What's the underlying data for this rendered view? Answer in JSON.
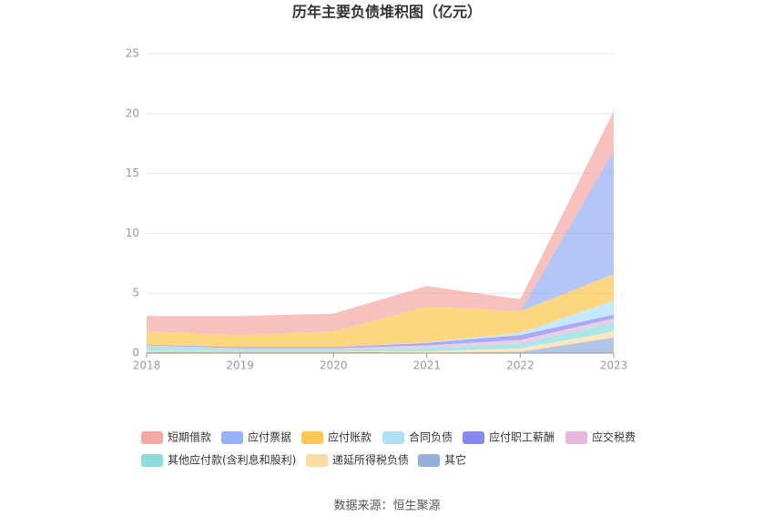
{
  "chart_data": {
    "type": "stacked-area",
    "title": "历年主要负债堆积图（亿元）",
    "categories": [
      "2018",
      "2019",
      "2020",
      "2021",
      "2022",
      "2023"
    ],
    "series": [
      {
        "name": "短期借款",
        "color": "#f4a09a",
        "values": [
          1.3,
          1.6,
          1.5,
          1.7,
          1.0,
          3.3
        ]
      },
      {
        "name": "应付票据",
        "color": "#8aa8f8",
        "values": [
          0,
          0,
          0,
          0,
          0,
          10.3
        ]
      },
      {
        "name": "应付账款",
        "color": "#fcc23c",
        "values": [
          1.1,
          1.0,
          1.3,
          3.0,
          1.8,
          2.2
        ]
      },
      {
        "name": "合同负债",
        "color": "#a8dcf8",
        "values": [
          0,
          0,
          0,
          0.05,
          0.2,
          1.2
        ]
      },
      {
        "name": "应付职工薪酬",
        "color": "#7b7bf0",
        "values": [
          0.05,
          0.1,
          0.1,
          0.2,
          0.4,
          0.3
        ]
      },
      {
        "name": "应交税费",
        "color": "#e6b0d8",
        "values": [
          0.05,
          0.05,
          0.05,
          0.2,
          0.3,
          0.3
        ]
      },
      {
        "name": "其他应付款(含利息和股利)",
        "color": "#80d8d8",
        "values": [
          0.4,
          0.2,
          0.2,
          0.3,
          0.4,
          0.8
        ]
      },
      {
        "name": "递延所得税负债",
        "color": "#fdd89a",
        "values": [
          0.1,
          0.05,
          0.05,
          0.1,
          0.3,
          0.5
        ]
      },
      {
        "name": "其它",
        "color": "#8aa6d8",
        "values": [
          0.1,
          0.1,
          0.1,
          0.05,
          0.1,
          1.3
        ]
      }
    ],
    "ylim": [
      0,
      25
    ],
    "yticks": [
      0,
      5,
      10,
      15,
      20,
      25
    ],
    "grid": true,
    "source": "数据来源：恒生聚源"
  }
}
